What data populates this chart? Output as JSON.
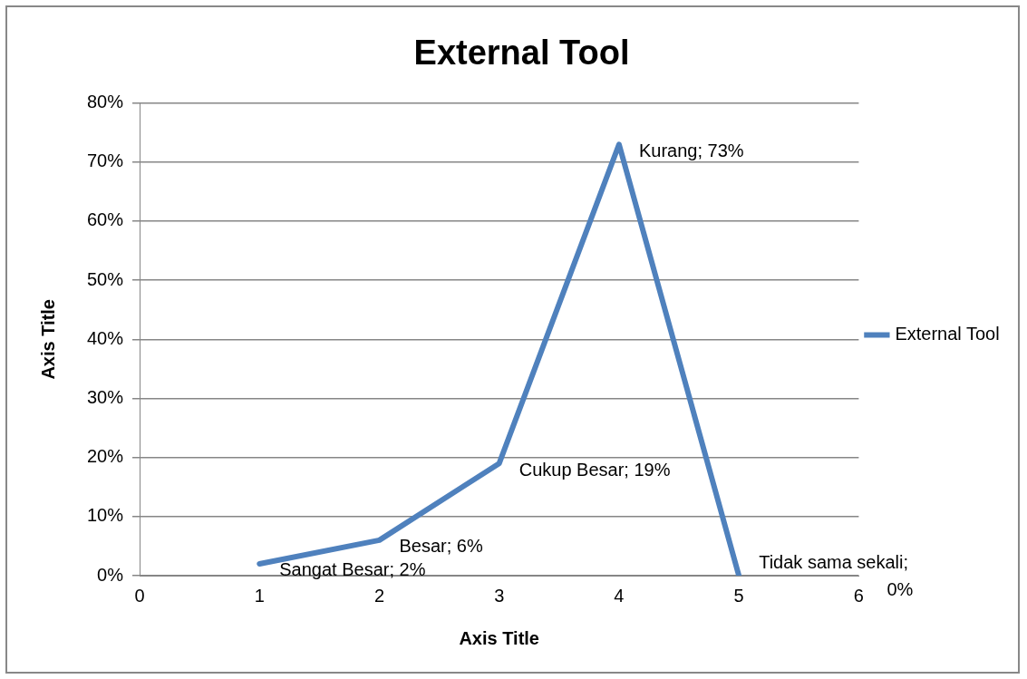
{
  "chart_data": {
    "type": "line",
    "title": "External Tool",
    "xlabel": "Axis Title",
    "ylabel": "Axis Title",
    "x": [
      1,
      2,
      3,
      4,
      5
    ],
    "series": [
      {
        "name": "External Tool",
        "color": "#4f81bd",
        "values": [
          2,
          6,
          19,
          73,
          0
        ],
        "value_labels": [
          "Sangat Besar; 2%",
          "Besar; 6%",
          "Cukup Besar; 19%",
          "Kurang; 73%",
          "Tidak sama sekali; 0%"
        ]
      }
    ],
    "xlim": [
      0,
      6
    ],
    "xticks": [
      0,
      1,
      2,
      3,
      4,
      5,
      6
    ],
    "ylim": [
      0,
      80
    ],
    "yticks": [
      {
        "value": 0,
        "label": "0%"
      },
      {
        "value": 10,
        "label": "10%"
      },
      {
        "value": 20,
        "label": "20%"
      },
      {
        "value": 30,
        "label": "30%"
      },
      {
        "value": 40,
        "label": "40%"
      },
      {
        "value": 50,
        "label": "50%"
      },
      {
        "value": 60,
        "label": "60%"
      },
      {
        "value": 70,
        "label": "70%"
      },
      {
        "value": 80,
        "label": "80%"
      }
    ],
    "grid": "y",
    "legend": "right",
    "marker": "none",
    "line_style": "solid"
  }
}
